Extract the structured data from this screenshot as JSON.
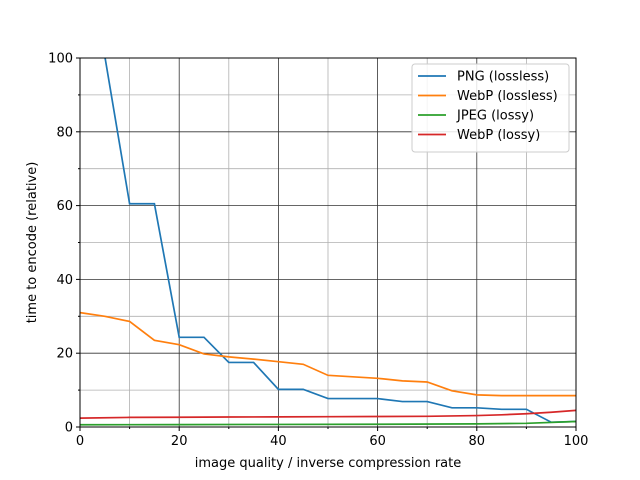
{
  "chart_data": {
    "type": "line",
    "title": "",
    "xlabel": "image quality / inverse compression rate",
    "ylabel": "time to encode (relative)",
    "xlim": [
      0,
      100
    ],
    "ylim": [
      0,
      100
    ],
    "xticks": [
      0,
      20,
      40,
      60,
      80,
      100
    ],
    "yticks": [
      0,
      20,
      40,
      60,
      80,
      100
    ],
    "grid": true,
    "legend": "top-right",
    "series": [
      {
        "name": "PNG (lossless)",
        "color": "#1f77b4",
        "x": [
          5,
          10,
          15,
          20,
          25,
          30,
          35,
          40,
          45,
          50,
          55,
          60,
          65,
          70,
          75,
          80,
          85,
          90,
          95,
          100
        ],
        "y": [
          100.5,
          60.5,
          60.5,
          24.3,
          24.3,
          17.5,
          17.5,
          10.2,
          10.2,
          7.7,
          7.7,
          7.7,
          6.9,
          6.9,
          5.2,
          5.2,
          4.8,
          4.8,
          1.3,
          1.5
        ]
      },
      {
        "name": "WebP (lossless)",
        "color": "#ff7f0e",
        "x": [
          0,
          5,
          10,
          15,
          20,
          25,
          30,
          35,
          40,
          45,
          50,
          55,
          60,
          65,
          70,
          75,
          80,
          85,
          90,
          95,
          100
        ],
        "y": [
          31,
          30,
          28.6,
          23.5,
          22.3,
          19.8,
          19,
          18.4,
          17.7,
          17,
          14,
          13.6,
          13.2,
          12.5,
          12.2,
          9.8,
          8.7,
          8.5,
          8.5,
          8.5,
          8.5
        ]
      },
      {
        "name": "JPEG (lossy)",
        "color": "#2ca02c",
        "x": [
          0,
          20,
          40,
          60,
          80,
          90,
          100
        ],
        "y": [
          0.6,
          0.65,
          0.7,
          0.75,
          0.85,
          1.0,
          1.5
        ]
      },
      {
        "name": "WebP (lossy)",
        "color": "#d62728",
        "x": [
          0,
          10,
          20,
          30,
          40,
          50,
          60,
          70,
          80,
          85,
          90,
          95,
          100
        ],
        "y": [
          2.4,
          2.6,
          2.65,
          2.7,
          2.75,
          2.8,
          2.85,
          2.9,
          3.1,
          3.3,
          3.6,
          4.0,
          4.5
        ]
      }
    ]
  }
}
